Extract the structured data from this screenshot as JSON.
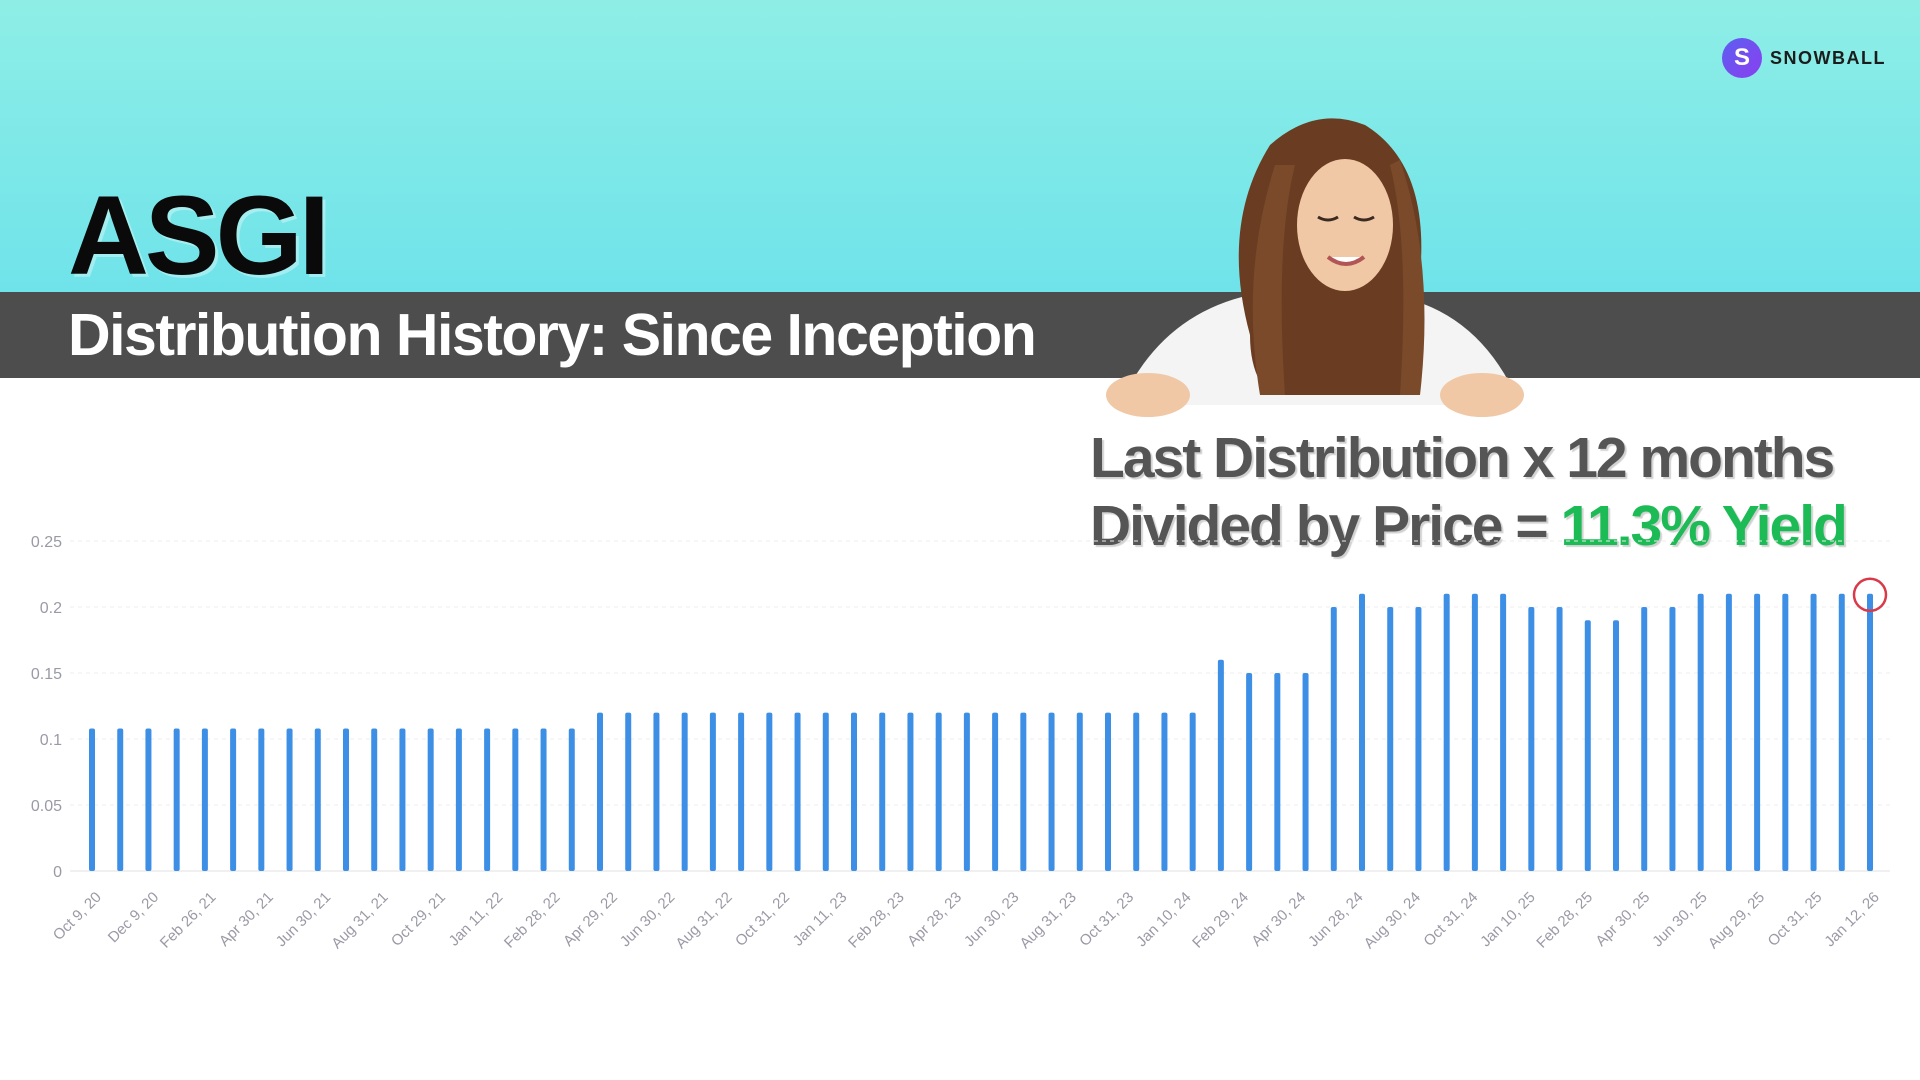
{
  "header": {
    "ticker": "ASGI",
    "subtitle": "Distribution History: Since Inception",
    "brand": "SNOWBALL",
    "brand_initial": "S"
  },
  "annotation": {
    "line1": "Last Distribution x 12 months",
    "line2_prefix": "Divided by Price = ",
    "line2_highlight": "11.3% Yield"
  },
  "colors": {
    "bar": "#3d8fe6",
    "highlight_circle": "#d83a4a",
    "yield_text": "#1dbb55",
    "title_bar": "#4d4d4d",
    "top_band": "#7ee8e8"
  },
  "chart_data": {
    "type": "bar",
    "title": "",
    "xlabel": "",
    "ylabel": "",
    "ylim": [
      0,
      0.25
    ],
    "yticks": [
      0,
      0.05,
      0.1,
      0.15,
      0.2,
      0.25
    ],
    "ytick_labels": [
      "0",
      "0.05",
      "0.1",
      "0.15",
      "0.2",
      "0.25"
    ],
    "grid": true,
    "xtick_labels": [
      "Oct 9, 20",
      "Dec 9, 20",
      "Feb 26, 21",
      "Apr 30, 21",
      "Jun 30, 21",
      "Aug 31, 21",
      "Oct 29, 21",
      "Jan 11, 22",
      "Feb 28, 22",
      "Apr 29, 22",
      "Jun 30, 22",
      "Aug 31, 22",
      "Oct 31, 22",
      "Jan 11, 23",
      "Feb 28, 23",
      "Apr 28, 23",
      "Jun 30, 23",
      "Aug 31, 23",
      "Oct 31, 23",
      "Jan 10, 24",
      "Feb 29, 24",
      "Apr 30, 24",
      "Jun 28, 24",
      "Aug 30, 24",
      "Oct 31, 24",
      "Jan 10, 25",
      "Feb 28, 25",
      "Apr 30, 25",
      "Jun 30, 25",
      "Aug 29, 25",
      "Oct 31, 25",
      "Jan 12, 26"
    ],
    "values": [
      0.108,
      0.108,
      0.108,
      0.108,
      0.108,
      0.108,
      0.108,
      0.108,
      0.108,
      0.108,
      0.108,
      0.108,
      0.108,
      0.108,
      0.108,
      0.108,
      0.108,
      0.108,
      0.12,
      0.12,
      0.12,
      0.12,
      0.12,
      0.12,
      0.12,
      0.12,
      0.12,
      0.12,
      0.12,
      0.12,
      0.12,
      0.12,
      0.12,
      0.12,
      0.12,
      0.12,
      0.12,
      0.12,
      0.12,
      0.12,
      0.16,
      0.15,
      0.15,
      0.15,
      0.2,
      0.21,
      0.2,
      0.2,
      0.21,
      0.21,
      0.21,
      0.2,
      0.2,
      0.19,
      0.19,
      0.2,
      0.2,
      0.21,
      0.21,
      0.21,
      0.21,
      0.21,
      0.21,
      0.21
    ],
    "highlighted_last": true
  }
}
